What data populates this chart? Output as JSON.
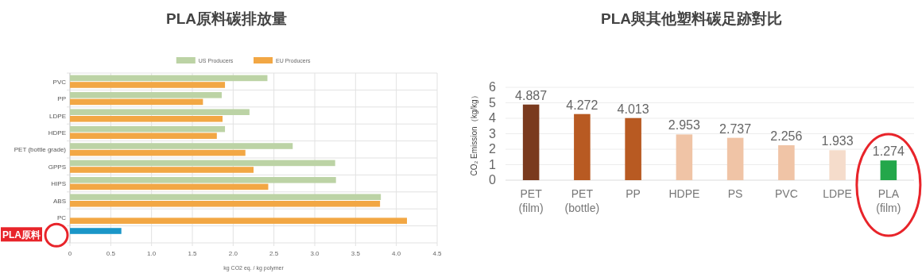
{
  "chart_data": [
    {
      "type": "bar",
      "orientation": "horizontal",
      "title": "PLA原料碳排放量",
      "xlabel": "kg CO2 eq. / kg polymer",
      "categories": [
        "PVC",
        "PP",
        "LDPE",
        "HDPE",
        "PET (bottle grade)",
        "GPPS",
        "HIPS",
        "ABS",
        "PC",
        null
      ],
      "series": [
        {
          "name": "US Producers",
          "color": "#bcd3a5",
          "colors": [
            "#bcd3a5",
            "#bcd3a5",
            "#bcd3a5",
            "#bcd3a5",
            "#bcd3a5",
            "#bcd3a5",
            "#bcd3a5",
            "#bcd3a5",
            null,
            "#1a96c8"
          ],
          "values": [
            2.42,
            1.86,
            2.2,
            1.9,
            2.73,
            3.25,
            3.26,
            3.81,
            null,
            0.63
          ]
        },
        {
          "name": "EU Producers",
          "color": "#f2a744",
          "values": [
            1.9,
            1.63,
            1.87,
            1.8,
            2.15,
            2.25,
            2.43,
            3.8,
            4.13,
            null
          ]
        }
      ],
      "xlim": [
        0,
        4.5
      ],
      "xticks": [
        0,
        0.5,
        {
          "value": 1,
          "label": "1.0"
        },
        1.5,
        {
          "value": 2,
          "label": "2.0"
        },
        2.5,
        {
          "value": 3,
          "label": "3.0"
        },
        3.5,
        {
          "value": 4,
          "label": "4.0"
        },
        4.5
      ],
      "grid": true,
      "legend": "top",
      "annotations": [
        "PLA原料"
      ]
    },
    {
      "type": "bar",
      "title": "PLA與其他塑料碳足跡對比",
      "ylabel": "CO₂ Emission（kg/kg）",
      "categories": [
        "PET\n(film)",
        "PET\n(bottle)",
        "PP",
        "HDPE",
        "PS",
        "PVC",
        "LDPE",
        "PLA\n(film)"
      ],
      "values": [
        4.887,
        4.272,
        4.013,
        2.953,
        2.737,
        2.256,
        1.933,
        1.274
      ],
      "colors": [
        "#7a3a1e",
        "#b85a22",
        "#b85a22",
        "#f0c4a6",
        "#f0c4a6",
        "#f0c4a6",
        "#f5dccb",
        "#23a74a"
      ],
      "ylim": [
        0,
        6
      ],
      "yticks": [
        0,
        1,
        2,
        3,
        4,
        5,
        6
      ],
      "grid": "y",
      "data_labels": true
    }
  ]
}
